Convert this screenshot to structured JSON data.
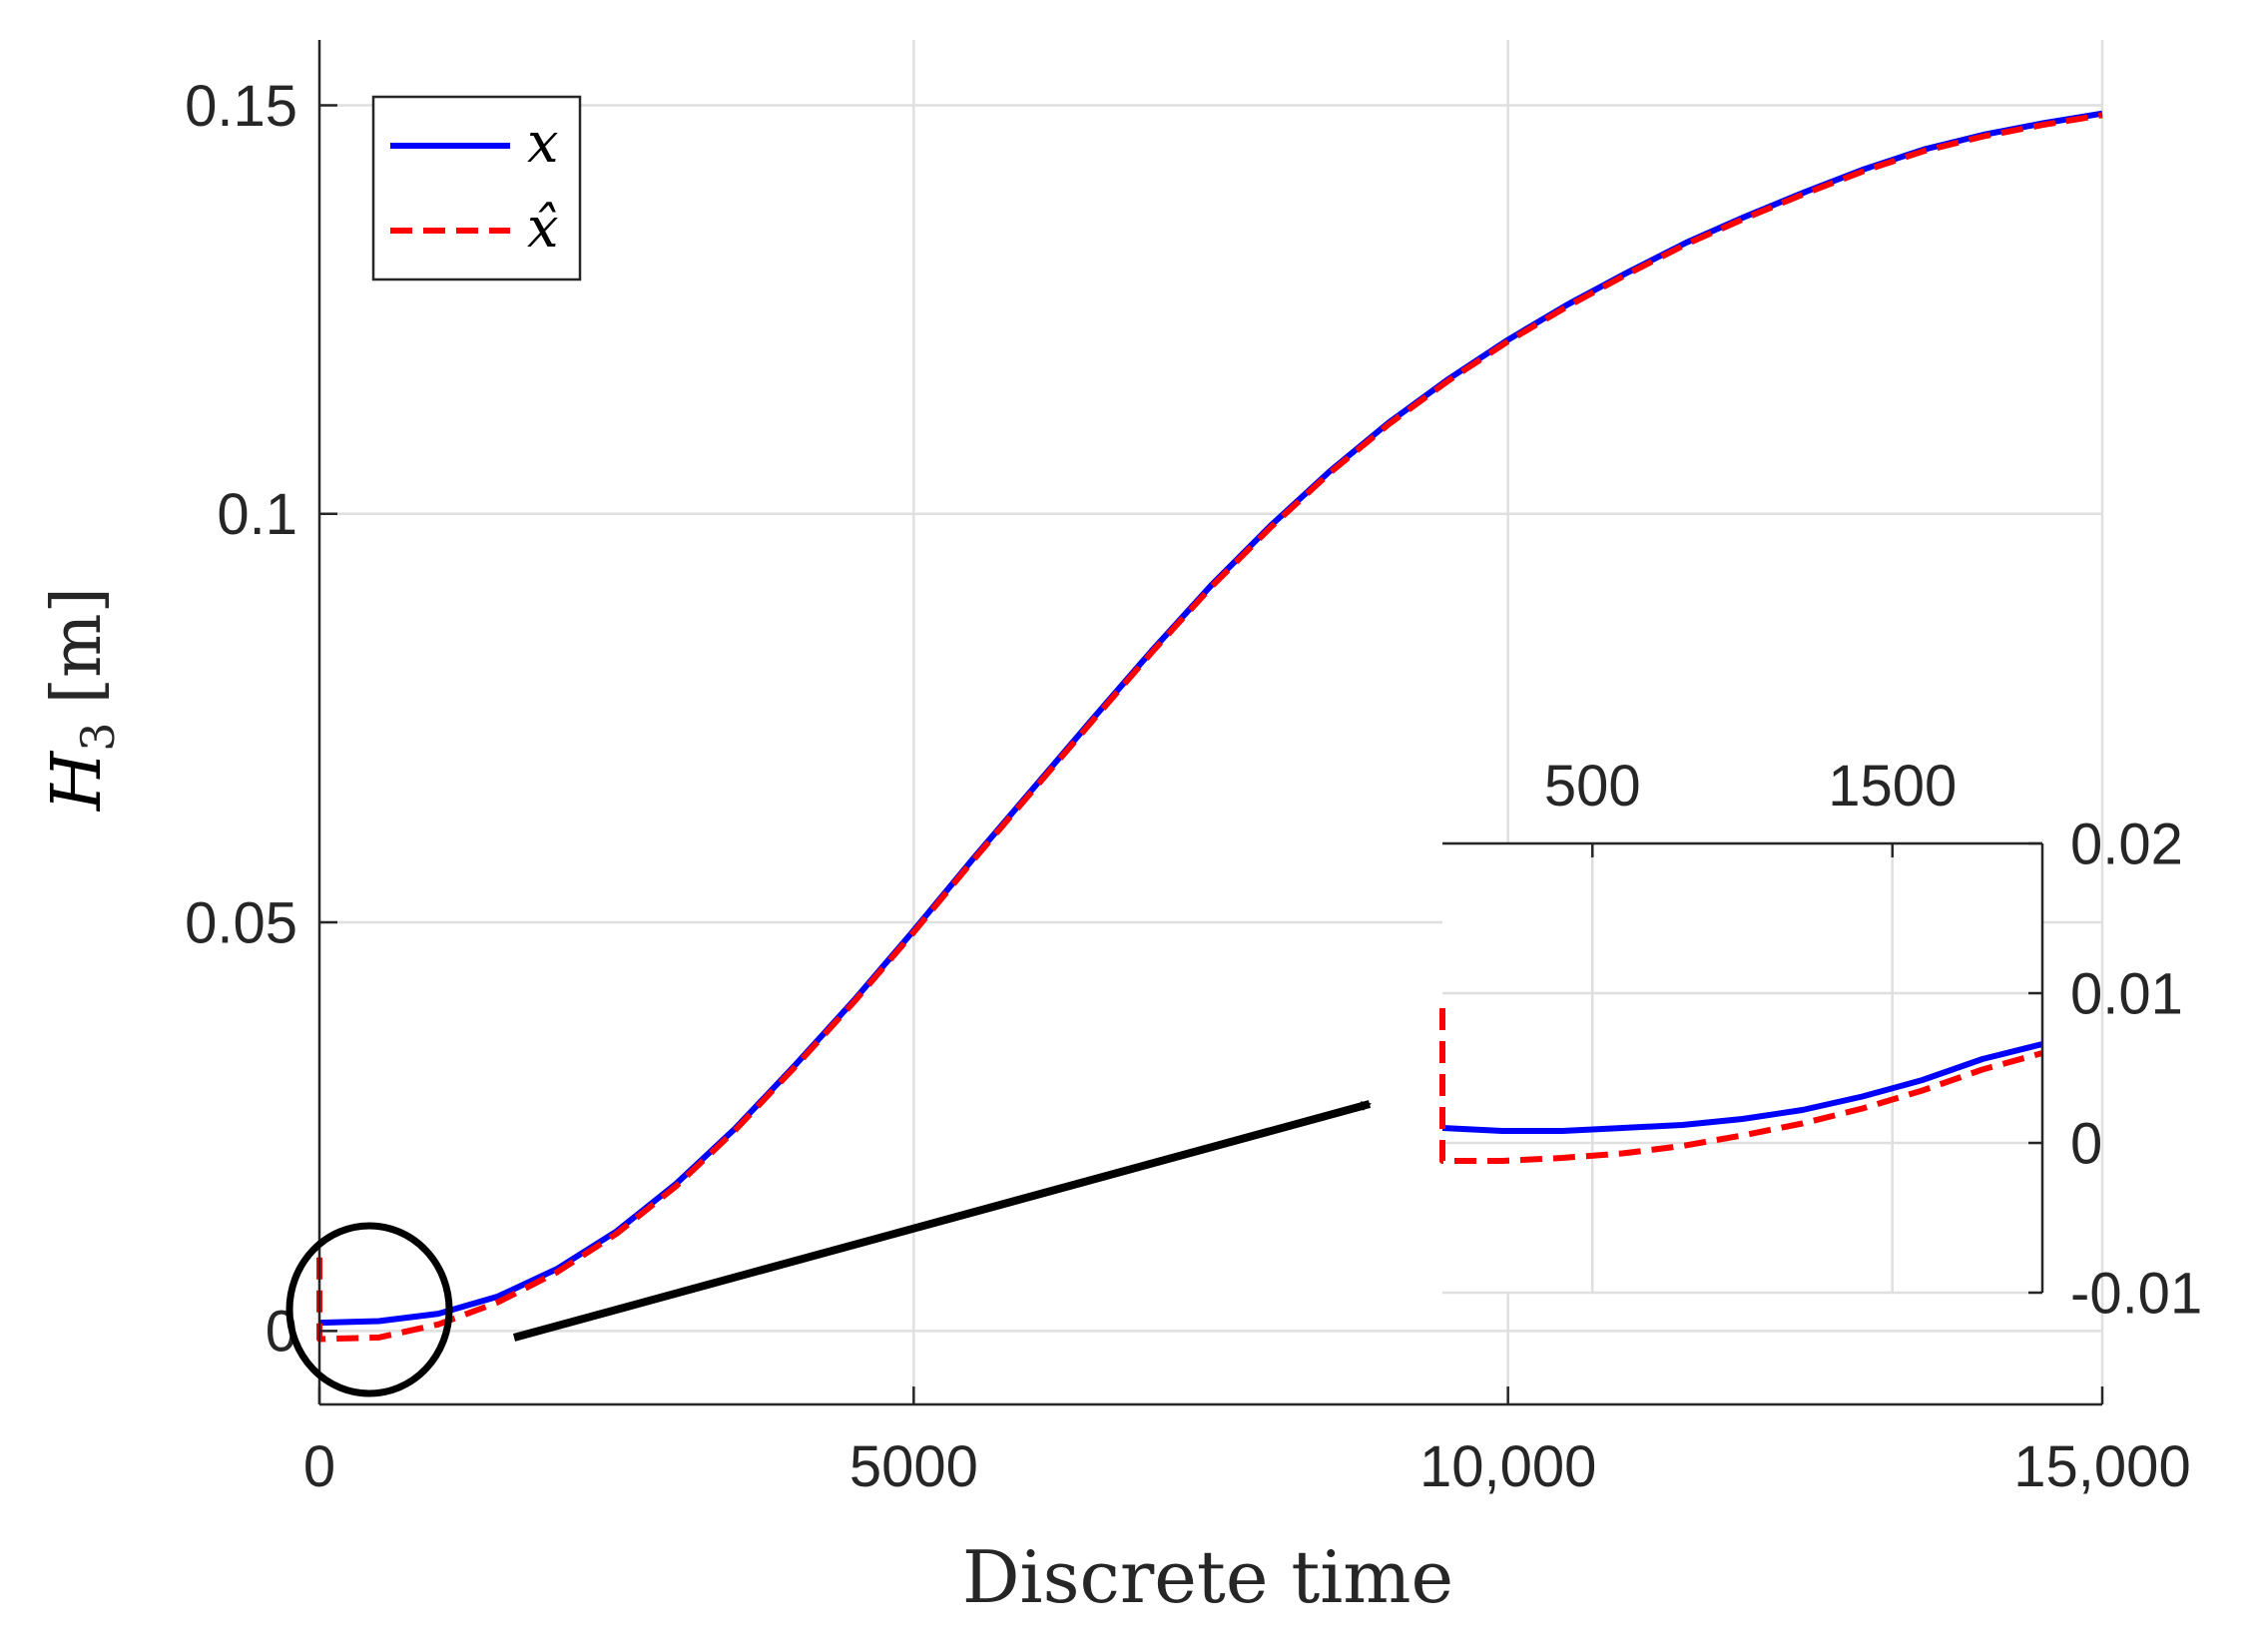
{
  "chart_data": {
    "main": {
      "type": "line",
      "xlabel": "Discrete time",
      "ylabel": {
        "symbol": "H",
        "subscript": "3",
        "unit": "[m]"
      },
      "xlim": [
        0,
        15000
      ],
      "ylim": [
        -0.009,
        0.158
      ],
      "xticks": [
        0,
        5000,
        10000,
        15000
      ],
      "xtick_labels": [
        "0",
        "5000",
        "10,000",
        "15,000"
      ],
      "yticks": [
        0,
        0.05,
        0.1,
        0.15
      ],
      "ytick_labels": [
        "0",
        "0.05",
        "0.1",
        "0.15"
      ],
      "grid": true,
      "legend": {
        "placement": "top-left",
        "entries": [
          "x",
          "x̂"
        ]
      },
      "series": [
        {
          "name": "x",
          "color": "#0000ff",
          "style": "solid",
          "x": [
            0,
            500,
            1000,
            1500,
            2000,
            2500,
            3000,
            3500,
            4000,
            4500,
            5000,
            5500,
            6000,
            6500,
            7000,
            7500,
            8000,
            8500,
            9000,
            9500,
            10000,
            10500,
            11000,
            11500,
            12000,
            12500,
            13000,
            13500,
            14000,
            14500,
            15000
          ],
          "y": [
            0.001,
            0.0012,
            0.0021,
            0.0042,
            0.0076,
            0.0122,
            0.018,
            0.0248,
            0.0325,
            0.0405,
            0.049,
            0.0578,
            0.0663,
            0.0748,
            0.0832,
            0.0912,
            0.0985,
            0.1052,
            0.1112,
            0.1165,
            0.1213,
            0.1256,
            0.1295,
            0.1332,
            0.1364,
            0.1394,
            0.1422,
            0.1446,
            0.1464,
            0.1478,
            0.149
          ]
        },
        {
          "name": "x̂",
          "color": "#ff0000",
          "style": "dashed",
          "x": [
            0,
            0,
            500,
            1000,
            1500,
            2000,
            2500,
            3000,
            3500,
            4000,
            4500,
            5000,
            5500,
            6000,
            6500,
            7000,
            7500,
            8000,
            8500,
            9000,
            9500,
            10000,
            10500,
            11000,
            11500,
            12000,
            12500,
            13000,
            13500,
            14000,
            14500,
            15000
          ],
          "y": [
            0.009,
            -0.001,
            -0.0008,
            0.0008,
            0.0035,
            0.0072,
            0.0119,
            0.0177,
            0.0246,
            0.0323,
            0.0403,
            0.0488,
            0.0576,
            0.0661,
            0.0746,
            0.083,
            0.091,
            0.0983,
            0.105,
            0.111,
            0.1163,
            0.1211,
            0.1254,
            0.1293,
            0.133,
            0.1362,
            0.1392,
            0.142,
            0.1444,
            0.1462,
            0.1476,
            0.1488
          ]
        }
      ],
      "annotations": [
        "ellipse marking zoom region near origin",
        "arrow to inset"
      ]
    },
    "inset": {
      "type": "line",
      "xlim": [
        0,
        2000
      ],
      "ylim": [
        -0.01,
        0.02
      ],
      "xticks": [
        500,
        1500
      ],
      "xtick_labels": [
        "500",
        "1500"
      ],
      "yticks": [
        -0.01,
        0,
        0.01,
        0.02
      ],
      "ytick_labels": [
        "-0.01",
        "0",
        "0.01",
        "0.02"
      ],
      "grid": true,
      "series": [
        {
          "name": "x",
          "color": "#0000ff",
          "style": "solid",
          "x": [
            0,
            200,
            400,
            600,
            800,
            1000,
            1200,
            1400,
            1600,
            1800,
            2000
          ],
          "y": [
            0.001,
            0.0008,
            0.0008,
            0.001,
            0.0012,
            0.0016,
            0.0022,
            0.0031,
            0.0042,
            0.0056,
            0.0066
          ]
        },
        {
          "name": "x̂",
          "color": "#ff0000",
          "style": "dashed",
          "x": [
            0,
            0,
            200,
            400,
            600,
            800,
            1000,
            1200,
            1400,
            1600,
            1800,
            2000
          ],
          "y": [
            0.009,
            -0.0012,
            -0.0012,
            -0.001,
            -0.0007,
            -0.0002,
            0.0005,
            0.0013,
            0.0023,
            0.0035,
            0.0049,
            0.006
          ]
        }
      ]
    }
  }
}
